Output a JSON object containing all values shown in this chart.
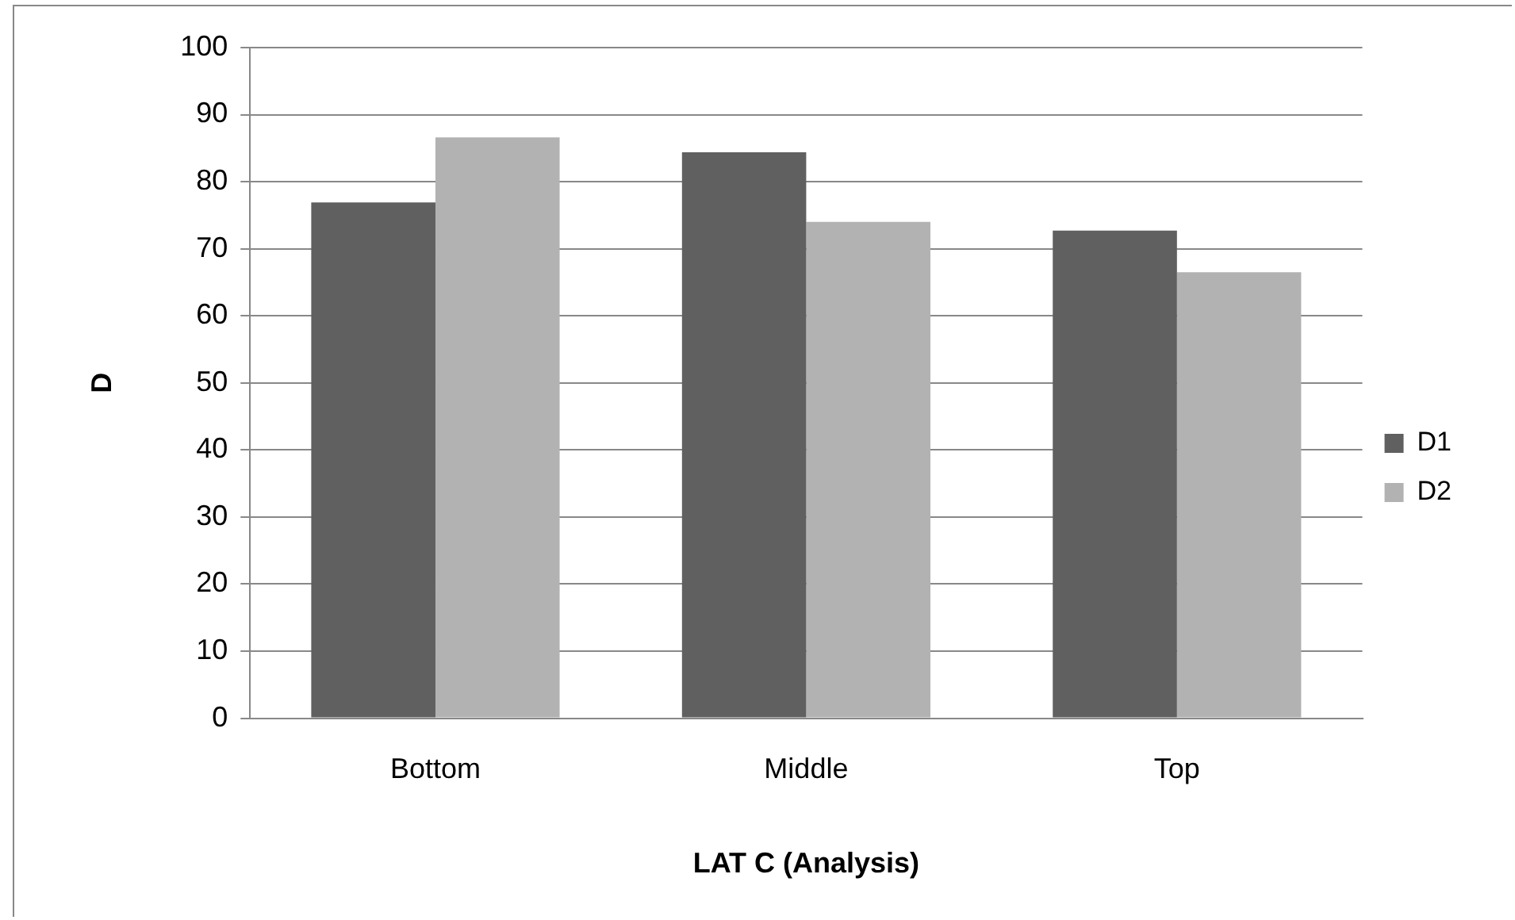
{
  "chart_data": {
    "type": "bar",
    "xlabel": "LAT C (Analysis)",
    "ylabel": "D",
    "categories": [
      "Bottom",
      "Middle",
      "Top"
    ],
    "series": [
      {
        "name": "D1",
        "color": "#606060",
        "values": [
          76.9,
          84.4,
          72.7
        ]
      },
      {
        "name": "D2",
        "color": "#b2b2b2",
        "values": [
          86.6,
          74.0,
          66.5
        ]
      }
    ],
    "ylim": [
      0,
      100
    ],
    "yticks": [
      0,
      10,
      20,
      30,
      40,
      50,
      60,
      70,
      80,
      90,
      100
    ],
    "grid": "y",
    "legend": "right"
  }
}
